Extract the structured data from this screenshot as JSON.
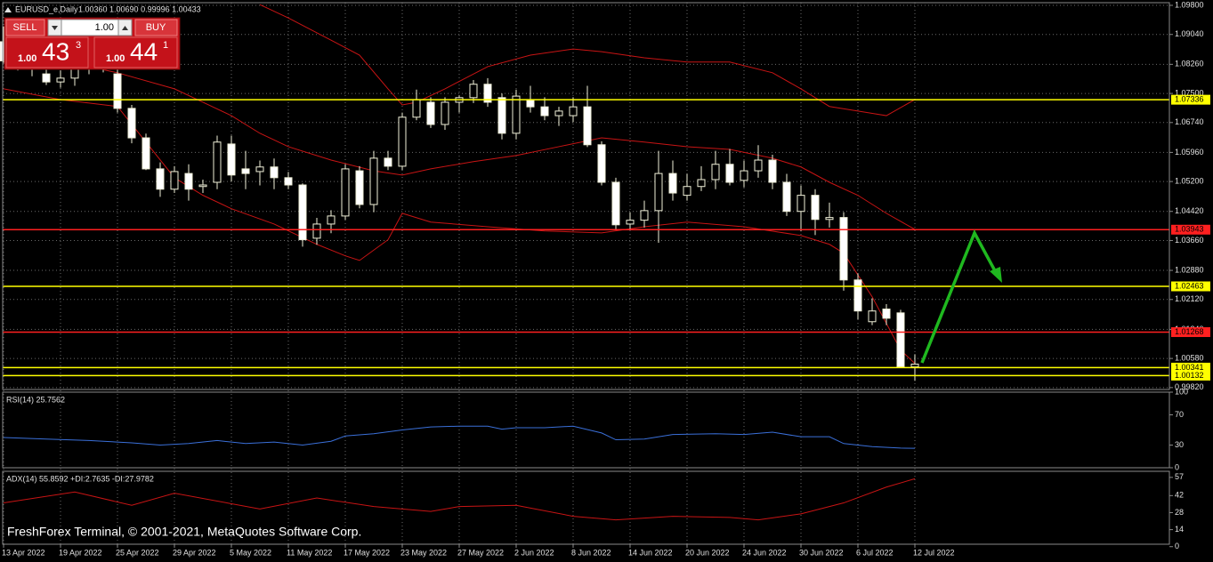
{
  "header": {
    "symbol": "EURUSD_e,Daily",
    "quote": "1.00360 1.00690 0.99996 1.00433"
  },
  "trade_panel": {
    "sell": "SELL",
    "buy": "BUY",
    "lot": "1.00",
    "bid": {
      "prefix": "1.00",
      "big": "43",
      "small": "3"
    },
    "ask": {
      "prefix": "1.00",
      "big": "44",
      "small": "1"
    }
  },
  "watermark": "FreshForex Terminal, © 2001-2021, MetaQuotes Software Corp.",
  "chart_data": [
    {
      "type": "candlestick",
      "grid": true,
      "bull_color": "#000000",
      "bear_color": "#ffffff",
      "wick_color": "#f0f0d8",
      "ylim": [
        0.9977,
        1.0987
      ],
      "yticks": [
        {
          "value": 1.098,
          "label": "1.09800"
        },
        {
          "value": 1.0904,
          "label": "1.09040"
        },
        {
          "value": 1.0826,
          "label": "1.08260"
        },
        {
          "value": 1.075,
          "label": "1.07500"
        },
        {
          "value": 1.0674,
          "label": "1.06740"
        },
        {
          "value": 1.0596,
          "label": "1.05960"
        },
        {
          "value": 1.052,
          "label": "1.05200"
        },
        {
          "value": 1.0442,
          "label": "1.04420"
        },
        {
          "value": 1.0366,
          "label": "1.03660"
        },
        {
          "value": 1.0288,
          "label": "1.02880"
        },
        {
          "value": 1.0212,
          "label": "1.02120"
        },
        {
          "value": 1.0134,
          "label": "1.01340"
        },
        {
          "value": 1.0058,
          "label": "1.00580"
        },
        {
          "value": 0.9982,
          "label": "0.99820"
        }
      ],
      "categories": [
        "13 Apr 2022",
        null,
        null,
        null,
        "19 Apr 2022",
        null,
        null,
        null,
        "25 Apr 2022",
        null,
        null,
        null,
        "29 Apr 2022",
        null,
        null,
        null,
        "5 May 2022",
        null,
        null,
        null,
        "11 May 2022",
        null,
        null,
        null,
        "17 May 2022",
        null,
        null,
        null,
        "23 May 2022",
        null,
        null,
        null,
        "27 May 2022",
        null,
        null,
        null,
        "2 Jun 2022",
        null,
        null,
        null,
        "8 Jun 2022",
        null,
        null,
        null,
        "14 Jun 2022",
        null,
        null,
        null,
        "20 Jun 2022",
        null,
        null,
        null,
        "24 Jun 2022",
        null,
        null,
        null,
        "30 Jun 2022",
        null,
        null,
        null,
        "6 Jul 2022",
        null,
        null,
        null,
        "12 Jul 2022"
      ],
      "open": [
        1.0885,
        1.0835,
        1.0825,
        1.0801,
        1.078,
        1.079,
        1.0813,
        1.082,
        1.0801,
        1.0711,
        1.0634,
        1.0553,
        1.05,
        1.0541,
        1.0507,
        1.0518,
        1.0618,
        1.0553,
        1.0546,
        1.0558,
        1.053,
        1.0511,
        1.0372,
        1.0409,
        1.043,
        1.0548,
        1.046,
        1.0581,
        1.056,
        1.0688,
        1.0727,
        1.0669,
        1.0727,
        1.0739,
        1.0774,
        1.0739,
        1.0646,
        1.0734,
        1.0715,
        1.0692,
        1.0692,
        1.0715,
        1.0616,
        1.0518,
        1.0409,
        1.0419,
        1.0444,
        1.0541,
        1.0484,
        1.0507,
        1.0525,
        1.0565,
        1.0523,
        1.0548,
        1.0576,
        1.0518,
        1.0442,
        1.0484,
        1.0421,
        1.0426,
        1.0263,
        1.0154,
        1.0187,
        1.0177,
        1.0036
      ],
      "high": [
        1.0925,
        1.087,
        1.085,
        1.0822,
        1.081,
        1.0828,
        1.0855,
        1.086,
        1.0815,
        1.072,
        1.0645,
        1.057,
        1.056,
        1.0565,
        1.0525,
        1.064,
        1.064,
        1.06,
        1.0575,
        1.058,
        1.0545,
        1.0515,
        1.0425,
        1.0445,
        1.0565,
        1.056,
        1.06,
        1.06,
        1.07,
        1.076,
        1.074,
        1.074,
        1.0745,
        1.0785,
        1.079,
        1.075,
        1.076,
        1.077,
        1.074,
        1.0715,
        1.074,
        1.077,
        1.0625,
        1.053,
        1.044,
        1.047,
        1.06,
        1.0575,
        1.054,
        1.056,
        1.06,
        1.0605,
        1.0575,
        1.0615,
        1.059,
        1.054,
        1.051,
        1.05,
        1.0465,
        1.044,
        1.028,
        1.0215,
        1.02,
        1.0185,
        1.0069
      ],
      "low": [
        1.083,
        1.081,
        1.0795,
        1.0772,
        1.0765,
        1.077,
        1.08,
        1.0805,
        1.07,
        1.062,
        1.055,
        1.048,
        1.049,
        1.047,
        1.049,
        1.05,
        1.052,
        1.05,
        1.051,
        1.05,
        1.05,
        1.035,
        1.0355,
        1.0385,
        1.042,
        1.045,
        1.044,
        1.055,
        1.055,
        1.068,
        1.066,
        1.0655,
        1.07,
        1.0725,
        1.0715,
        1.063,
        1.063,
        1.07,
        1.068,
        1.0665,
        1.0675,
        1.061,
        1.051,
        1.0395,
        1.0395,
        1.04,
        1.036,
        1.047,
        1.047,
        1.0495,
        1.05,
        1.051,
        1.0505,
        1.053,
        1.05,
        1.043,
        1.039,
        1.038,
        1.04,
        1.0235,
        1.016,
        1.0145,
        1.0145,
        1.0035,
        0.99996
      ],
      "close": [
        1.0835,
        1.0825,
        1.0813,
        1.078,
        1.079,
        1.0813,
        1.084,
        1.085,
        1.0711,
        1.0634,
        1.0553,
        1.05,
        1.0546,
        1.05,
        1.0511,
        1.0623,
        1.0537,
        1.0541,
        1.0558,
        1.053,
        1.0511,
        1.0368,
        1.0409,
        1.043,
        1.0553,
        1.046,
        1.0581,
        1.056,
        1.0688,
        1.0734,
        1.0669,
        1.0727,
        1.0739,
        1.0774,
        1.0727,
        1.0646,
        1.0743,
        1.0715,
        1.0692,
        1.0704,
        1.0715,
        1.0616,
        1.0518,
        1.0407,
        1.0419,
        1.0444,
        1.0541,
        1.049,
        1.0507,
        1.0525,
        1.0565,
        1.0518,
        1.0548,
        1.0576,
        1.0518,
        1.0442,
        1.0484,
        1.0421,
        1.0426,
        1.0263,
        1.0182,
        1.0182,
        1.0163,
        1.0036,
        1.00433
      ],
      "bands": [
        {
          "color": "#c81414",
          "x": [
            18,
            20,
            23,
            25,
            27,
            28,
            29,
            31,
            34,
            37,
            40,
            42,
            45,
            48,
            51,
            54,
            56,
            58,
            60,
            62,
            64
          ],
          "values": [
            1.0982,
            1.0947,
            1.0889,
            1.085,
            1.0762,
            1.072,
            1.0727,
            1.0762,
            1.082,
            1.085,
            1.0866,
            1.0859,
            1.0843,
            1.0832,
            1.0832,
            1.0804,
            1.0762,
            1.0716,
            1.0704,
            1.0692,
            1.0734
          ]
        },
        {
          "color": "#c81414",
          "x": [
            0,
            4,
            8,
            12,
            14,
            16,
            18,
            20,
            23,
            26,
            28,
            30,
            33,
            36,
            39,
            42,
            45,
            48,
            51,
            54,
            56,
            58,
            60,
            62,
            64
          ],
          "values": [
            1.0866,
            1.0836,
            1.0804,
            1.0762,
            1.0727,
            1.0692,
            1.0646,
            1.0611,
            1.0576,
            1.0548,
            1.0537,
            1.0553,
            1.0572,
            1.0588,
            1.0611,
            1.0634,
            1.0623,
            1.0611,
            1.0604,
            1.0581,
            1.0558,
            1.0518,
            1.0484,
            1.0437,
            1.0395
          ]
        },
        {
          "color": "#c81414",
          "x": [
            0,
            4,
            8,
            12,
            14,
            16,
            19,
            22,
            24,
            25,
            27,
            28,
            30,
            34,
            38,
            42,
            45,
            48,
            52,
            56,
            58,
            59,
            61,
            63,
            64
          ],
          "values": [
            1.0762,
            1.0734,
            1.0716,
            1.053,
            1.0484,
            1.0449,
            1.0409,
            1.0356,
            1.0326,
            1.0314,
            1.0368,
            1.0437,
            1.0414,
            1.0402,
            1.0391,
            1.0386,
            1.0402,
            1.0414,
            1.0402,
            1.0379,
            1.0356,
            1.0333,
            1.0219,
            1.008,
            1.0045
          ]
        }
      ],
      "levels": [
        {
          "value": 1.07336,
          "label": "1.07336",
          "color": "#ffff00"
        },
        {
          "value": 1.03943,
          "label": "1.03943",
          "color": "#ff2020"
        },
        {
          "value": 1.02463,
          "label": "1.02463",
          "color": "#ffff00"
        },
        {
          "value": 1.01268,
          "label": "1.01268",
          "color": "#ff2020"
        },
        {
          "value": 1.00341,
          "label": "1.00341",
          "color": "#ffff00"
        },
        {
          "value": 1.00132,
          "label": "1.00132",
          "color": "#ffff00"
        }
      ]
    },
    {
      "type": "line",
      "title": "RSI(14) 25.7562",
      "grid": true,
      "ylim": [
        0,
        100
      ],
      "yticks": [
        100,
        70,
        30,
        0
      ],
      "series": [
        {
          "color": "#3a6fd8",
          "x": [
            0,
            3,
            6,
            9,
            11,
            13,
            15,
            17,
            19,
            21,
            23,
            24,
            26,
            28,
            30,
            32,
            34,
            35,
            36,
            38,
            40,
            42,
            43,
            45,
            47,
            50,
            52,
            54,
            56,
            58,
            59,
            61,
            63,
            64
          ],
          "values": [
            40,
            38,
            36,
            33,
            30,
            32,
            36,
            32,
            34,
            30,
            35,
            42,
            45,
            50,
            54,
            55,
            55,
            51,
            53,
            53,
            55,
            46,
            37,
            38,
            44,
            45,
            44,
            47,
            41,
            41,
            32,
            28,
            26,
            25.7562
          ]
        }
      ]
    },
    {
      "type": "line",
      "title": "ADX(14) 55.8592 +DI:2.7635 -DI:27.9782",
      "grid": true,
      "ylim": [
        2,
        62
      ],
      "yticks": [
        57,
        42,
        28,
        14,
        0
      ],
      "series": [
        {
          "color": "#c81414",
          "x": [
            0,
            5,
            9,
            12,
            18,
            22,
            26,
            30,
            32,
            36,
            40,
            43,
            47,
            51,
            53,
            56,
            59,
            62,
            64
          ],
          "values": [
            36,
            45,
            34,
            44,
            31,
            40,
            33,
            29,
            33,
            34,
            25,
            22,
            25,
            24,
            22,
            27,
            36,
            49,
            55.8592
          ]
        }
      ]
    }
  ]
}
